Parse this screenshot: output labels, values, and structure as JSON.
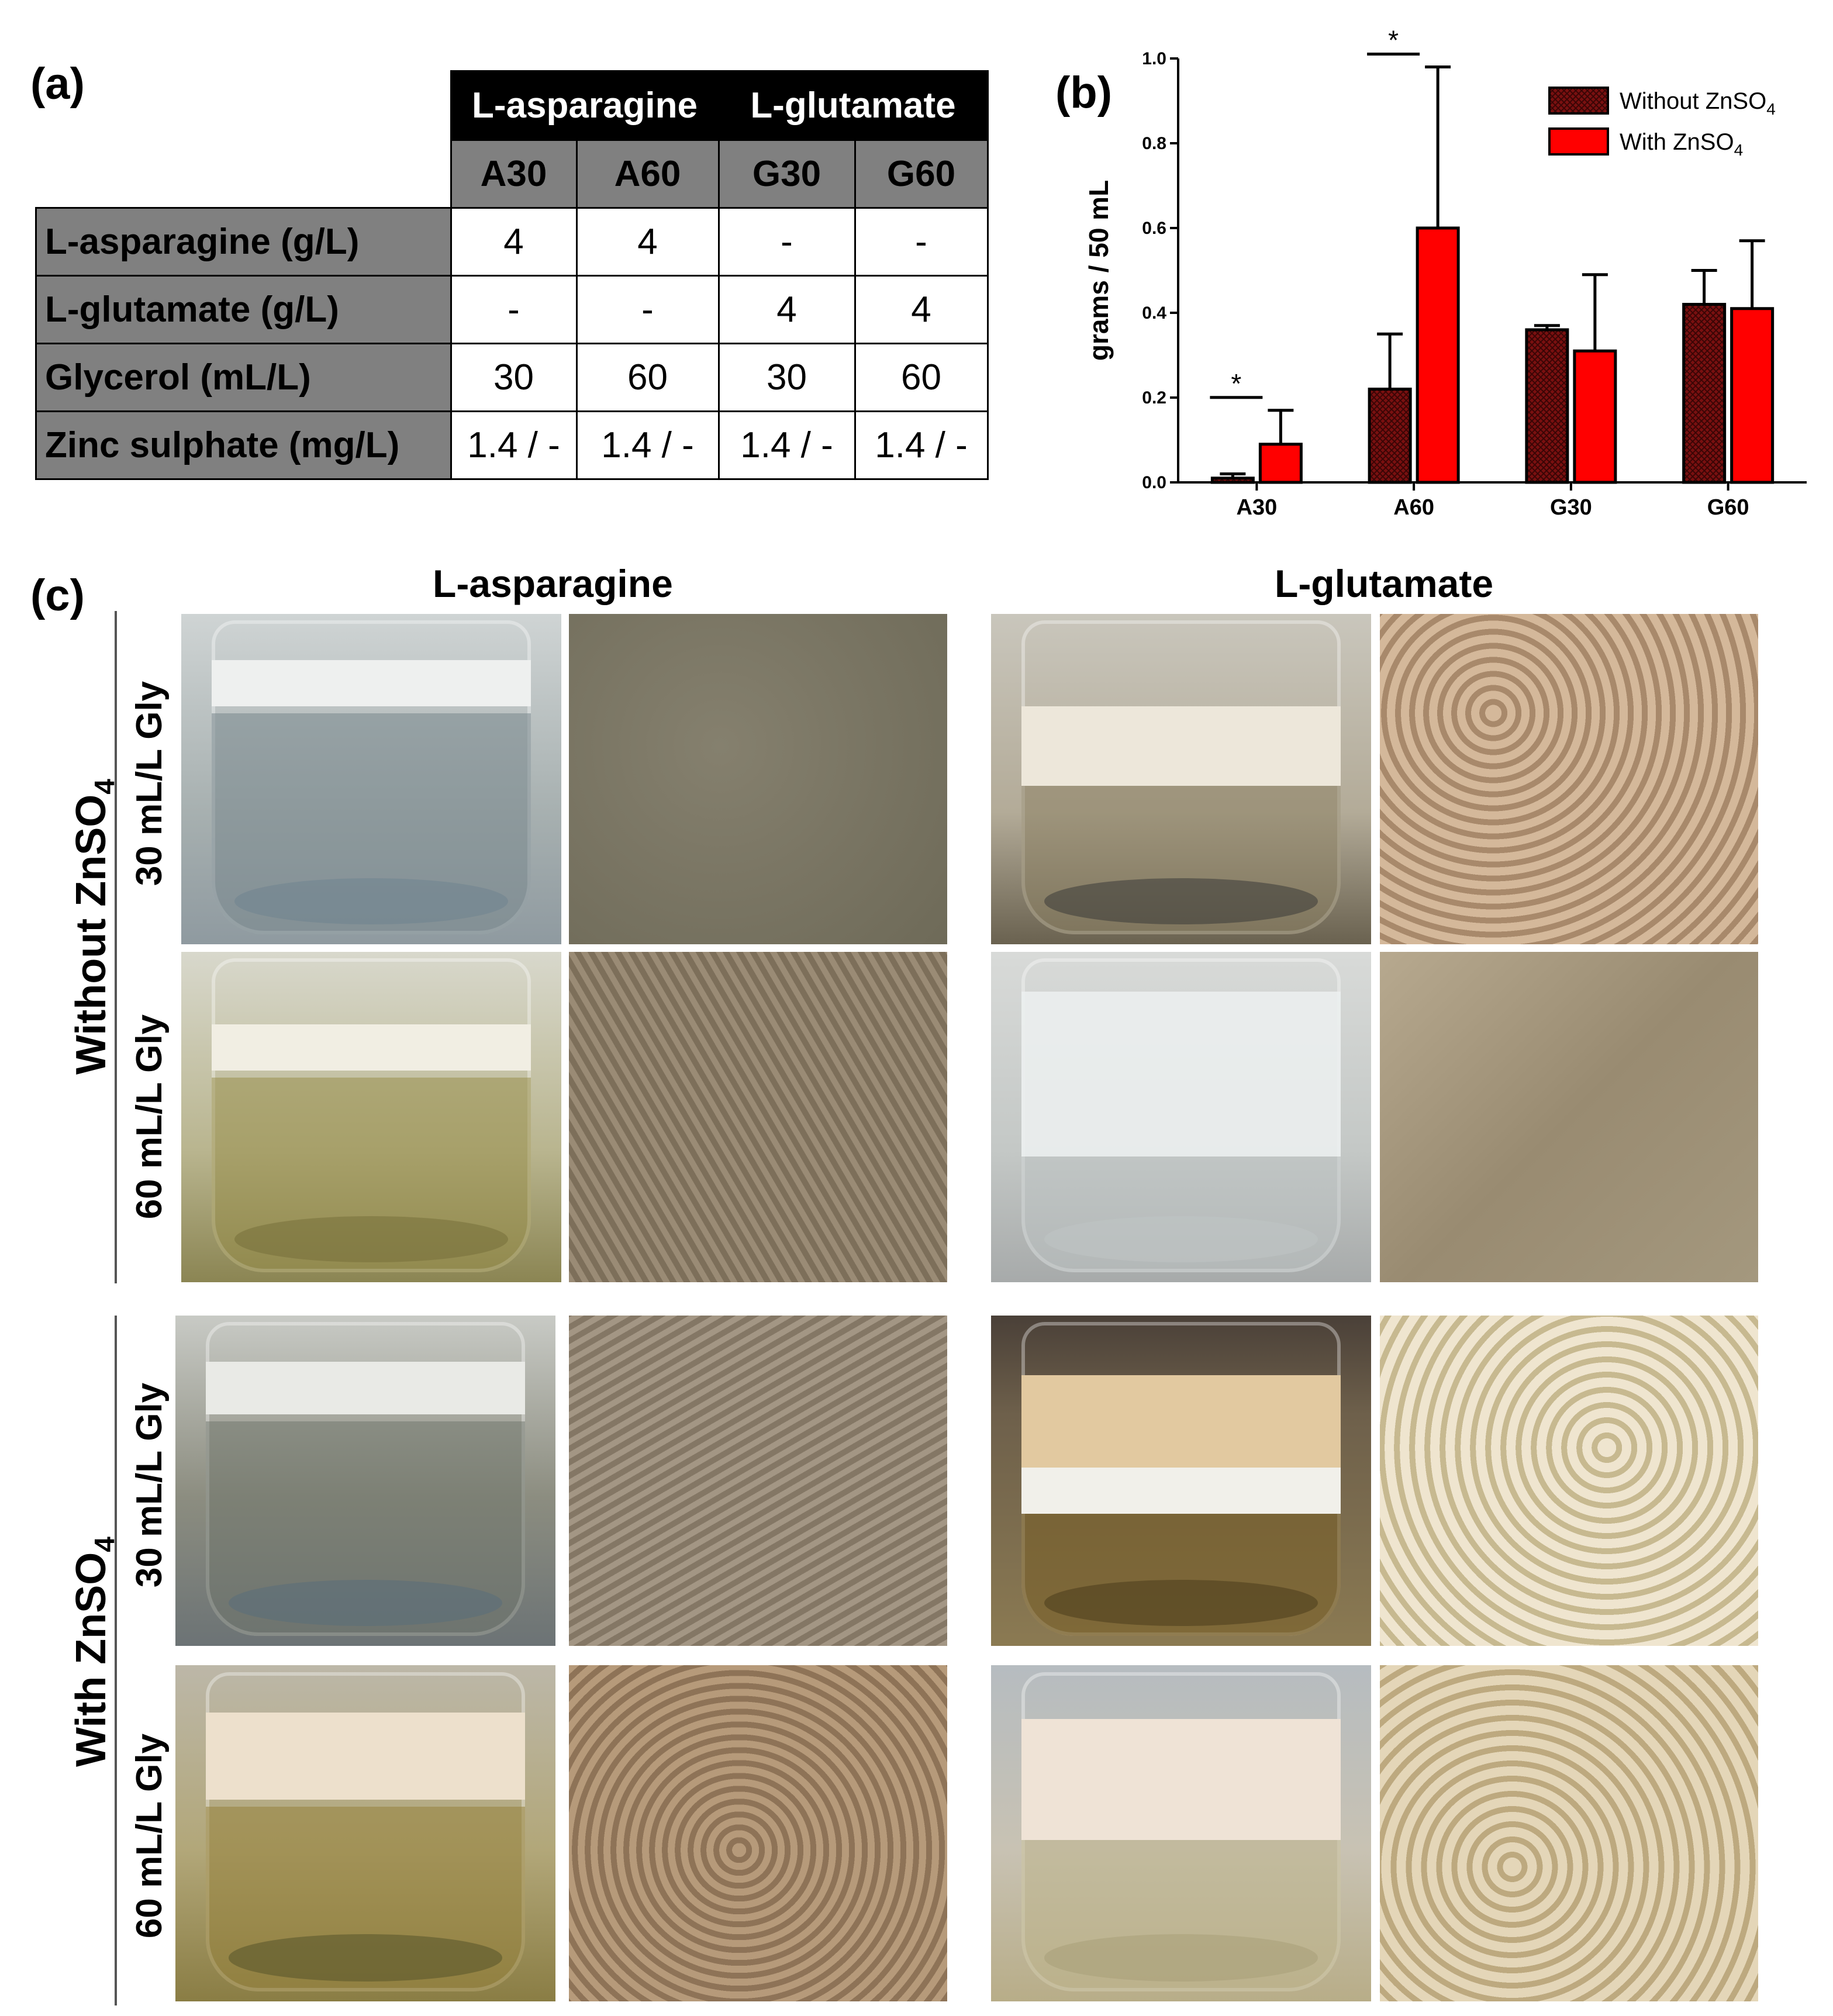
{
  "panel_labels": {
    "a": "(a)",
    "b": "(b)",
    "c": "(c)"
  },
  "table": {
    "group_headers": [
      "L-asparagine",
      "L-glutamate"
    ],
    "column_headers": [
      "A30",
      "A60",
      "G30",
      "G60"
    ],
    "rows": [
      {
        "label": "L-asparagine (g/L)",
        "values": [
          "4",
          "4",
          "-",
          "-"
        ]
      },
      {
        "label": "L-glutamate (g/L)",
        "values": [
          "-",
          "-",
          "4",
          "4"
        ]
      },
      {
        "label": "Glycerol (mL/L)",
        "values": [
          "30",
          "60",
          "30",
          "60"
        ]
      },
      {
        "label": "Zinc sulphate (mg/L)",
        "values": [
          "1.4 / -",
          "1.4 / -",
          "1.4 / -",
          "1.4 / -"
        ]
      }
    ]
  },
  "chart_data": {
    "type": "bar",
    "categories": [
      "A30",
      "A60",
      "G30",
      "G60"
    ],
    "ylabel": "grams / 50 mL",
    "ylim": [
      0,
      1.0
    ],
    "yticks": [
      "0.0",
      "0.2",
      "0.4",
      "0.6",
      "0.8",
      "1.0"
    ],
    "legend_position": "top-right",
    "series": [
      {
        "name": "Without ZnSO",
        "subscript": "4",
        "color": "#7a1010",
        "pattern": "crosshatch",
        "values": [
          0.01,
          0.22,
          0.36,
          0.42
        ],
        "errors": [
          0.01,
          0.13,
          0.01,
          0.08
        ]
      },
      {
        "name": "With ZnSO",
        "subscript": "4",
        "color": "#ff0000",
        "pattern": "solid",
        "values": [
          0.09,
          0.6,
          0.31,
          0.41
        ],
        "errors": [
          0.08,
          0.38,
          0.18,
          0.16
        ]
      }
    ],
    "significance": [
      {
        "category": "A30",
        "label": "*"
      },
      {
        "category": "A60",
        "label": "*"
      }
    ]
  },
  "photo_grid": {
    "column_titles": [
      "L-asparagine",
      "L-glutamate"
    ],
    "group_labels": [
      {
        "text": "Without ZnSO",
        "subscript": "4"
      },
      {
        "text": "With ZnSO",
        "subscript": "4"
      }
    ],
    "row_labels": [
      "30 mL/L Gly",
      "60 mL/L Gly",
      "30 mL/L Gly",
      "60 mL/L Gly"
    ]
  }
}
